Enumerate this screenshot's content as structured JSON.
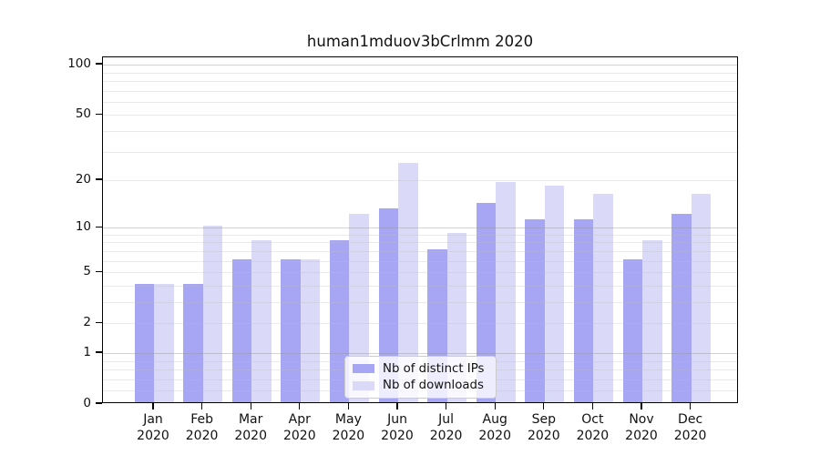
{
  "page": {
    "background": "#ffffff"
  },
  "chart_data": {
    "type": "bar",
    "title": "human1mduov3bCrlmm 2020",
    "categories": [
      "Jan",
      "Feb",
      "Mar",
      "Apr",
      "May",
      "Jun",
      "Jul",
      "Aug",
      "Sep",
      "Oct",
      "Nov",
      "Dec"
    ],
    "year_label": "2020",
    "series": [
      {
        "name": "Nb of distinct IPs",
        "color": "#a6a6f5",
        "values": [
          4,
          4,
          6,
          6,
          8,
          13,
          7,
          14,
          11,
          11,
          6,
          12
        ]
      },
      {
        "name": "Nb of downloads",
        "color": "#dadaf8",
        "values": [
          4,
          10,
          8,
          6,
          12,
          25,
          9,
          19,
          18,
          16,
          8,
          16
        ]
      }
    ],
    "yscale": "log1p",
    "ylim": [
      0,
      110
    ],
    "ytick_values": [
      100,
      50,
      20,
      10,
      5,
      2,
      1,
      0
    ],
    "ytick_labels": [
      "100",
      "50",
      "20",
      "10",
      "5",
      "2",
      "1",
      "0"
    ],
    "major_gridlines": [
      1,
      10,
      100
    ],
    "minor_gridlines": [
      0.2,
      0.4,
      0.6,
      0.8,
      2,
      3,
      4,
      5,
      6,
      7,
      8,
      9,
      20,
      30,
      40,
      50,
      60,
      70,
      80,
      90
    ],
    "grid": true,
    "legend_position": "lower-center"
  },
  "colors": {
    "ips_bar": "#a6a6f5",
    "downloads_bar": "#dadaf8",
    "spine": "#000000",
    "text": "#111111",
    "grid_major": "#c3c3c3",
    "grid_minor": "#ebebeb",
    "legend_border": "#cccccc",
    "legend_background": "#ffffff"
  }
}
